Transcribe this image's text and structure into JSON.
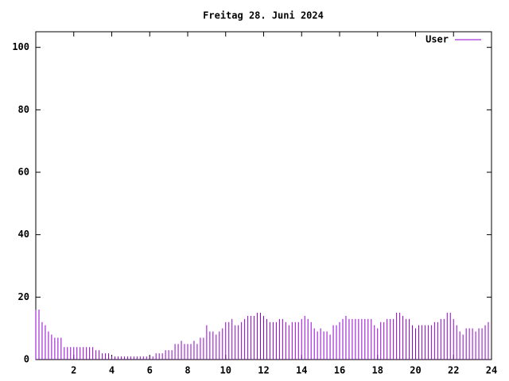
{
  "chart_data": {
    "type": "impulses",
    "title": "Freitag 28. Juni 2024",
    "xlim": [
      0,
      24
    ],
    "ylim": [
      0,
      105
    ],
    "xticks": [
      2,
      4,
      6,
      8,
      10,
      12,
      14,
      16,
      18,
      20,
      22,
      24
    ],
    "yticks": [
      0,
      20,
      40,
      60,
      80,
      100
    ],
    "legend": "top-right",
    "series": [
      {
        "name": "User",
        "color": "#9400d3",
        "x": [
          0,
          0.167,
          0.333,
          0.5,
          0.667,
          0.833,
          1,
          1.167,
          1.333,
          1.5,
          1.667,
          1.833,
          2,
          2.167,
          2.333,
          2.5,
          2.667,
          2.833,
          3,
          3.167,
          3.333,
          3.5,
          3.667,
          3.833,
          4,
          4.167,
          4.333,
          4.5,
          4.667,
          4.833,
          5,
          5.167,
          5.333,
          5.5,
          5.667,
          5.833,
          6,
          6.167,
          6.333,
          6.5,
          6.667,
          6.833,
          7,
          7.167,
          7.333,
          7.5,
          7.667,
          7.833,
          8,
          8.167,
          8.333,
          8.5,
          8.667,
          8.833,
          9,
          9.167,
          9.333,
          9.5,
          9.667,
          9.833,
          10,
          10.167,
          10.333,
          10.5,
          10.667,
          10.833,
          11,
          11.167,
          11.333,
          11.5,
          11.667,
          11.833,
          12,
          12.167,
          12.333,
          12.5,
          12.667,
          12.833,
          13,
          13.167,
          13.333,
          13.5,
          13.667,
          13.833,
          14,
          14.167,
          14.333,
          14.5,
          14.667,
          14.833,
          15,
          15.167,
          15.333,
          15.5,
          15.667,
          15.833,
          16,
          16.167,
          16.333,
          16.5,
          16.667,
          16.833,
          17,
          17.167,
          17.333,
          17.5,
          17.667,
          17.833,
          18,
          18.167,
          18.333,
          18.5,
          18.667,
          18.833,
          19,
          19.167,
          19.333,
          19.5,
          19.667,
          19.833,
          20,
          20.167,
          20.333,
          20.5,
          20.667,
          20.833,
          21,
          21.167,
          21.333,
          21.5,
          21.667,
          21.833,
          22,
          22.167,
          22.333,
          22.5,
          22.667,
          22.833,
          23,
          23.167,
          23.333,
          23.5,
          23.667,
          23.833
        ],
        "values": [
          16,
          16,
          12,
          11,
          9,
          8,
          7,
          7,
          7,
          4,
          4,
          4,
          4,
          4,
          4,
          4,
          4,
          4,
          4,
          3,
          3,
          2,
          2,
          2,
          1,
          1,
          1,
          1,
          1,
          1,
          1,
          1,
          1,
          1,
          1,
          1,
          1,
          1,
          2,
          2,
          2,
          3,
          3,
          3,
          5,
          5,
          6,
          5,
          5,
          5,
          6,
          5,
          7,
          7,
          11,
          9,
          9,
          8,
          9,
          10,
          12,
          12,
          13,
          11,
          11,
          12,
          13,
          14,
          14,
          14,
          15,
          15,
          14,
          13,
          12,
          12,
          12,
          13,
          13,
          12,
          11,
          12,
          12,
          12,
          13,
          14,
          13,
          12,
          10,
          9,
          10,
          9,
          9,
          8,
          11,
          11,
          12,
          13,
          14,
          13,
          13,
          13,
          13,
          13,
          13,
          13,
          13,
          11,
          10,
          12,
          12,
          13,
          13,
          13,
          15,
          15,
          14,
          13,
          13,
          11,
          10,
          11,
          11,
          11,
          11,
          11,
          12,
          12,
          13,
          13,
          15,
          15,
          13,
          11,
          9,
          8,
          10,
          10,
          10,
          9,
          10,
          10,
          11,
          12
        ]
      }
    ]
  }
}
